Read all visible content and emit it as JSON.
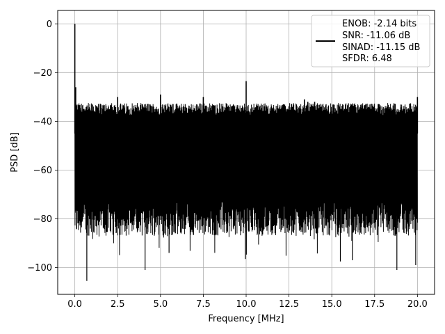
{
  "chart_data": {
    "type": "line",
    "xlabel": "Frequency [MHz]",
    "ylabel": "PSD [dB]",
    "xlim": [
      -1,
      21
    ],
    "ylim": [
      -111,
      5.5
    ],
    "xticks": [
      0,
      2.5,
      5,
      7.5,
      10,
      12.5,
      15,
      17.5,
      20
    ],
    "xtick_labels": [
      "0.0",
      "2.5",
      "5.0",
      "7.5",
      "10.0",
      "12.5",
      "15.0",
      "17.5",
      "20.0"
    ],
    "yticks": [
      0,
      -20,
      -40,
      -60,
      -80,
      -100
    ],
    "ytick_labels": [
      "0",
      "−20",
      "−40",
      "−60",
      "−80",
      "−100"
    ],
    "grid": true,
    "legend_position": "top-right",
    "legend_lines": [
      "ENOB: -2.14 bits",
      "SNR: -11.06 dB",
      "SINAD: -11.15 dB",
      "SFDR: 6.48"
    ],
    "series": [
      {
        "color": "#000000",
        "x_range": [
          0,
          20
        ],
        "noise_floor_upper_db": -36,
        "noise_floor_lower_db": -80,
        "peaks": [
          {
            "x": 0.0,
            "y": 0.0
          },
          {
            "x": 0.05,
            "y": -26
          },
          {
            "x": 2.5,
            "y": -30
          },
          {
            "x": 5.0,
            "y": -29
          },
          {
            "x": 7.5,
            "y": -30
          },
          {
            "x": 10.0,
            "y": -23.5
          },
          {
            "x": 13.4,
            "y": -31
          },
          {
            "x": 13.6,
            "y": -32
          },
          {
            "x": 14.0,
            "y": -32
          },
          {
            "x": 20.0,
            "y": -30
          }
        ],
        "dips": [
          {
            "x": 0.7,
            "y": -105.5
          },
          {
            "x": 4.1,
            "y": -101
          },
          {
            "x": 9.95,
            "y": -96.5
          },
          {
            "x": 18.8,
            "y": -101
          },
          {
            "x": 19.9,
            "y": -99
          },
          {
            "x": 5.5,
            "y": -94
          },
          {
            "x": 15.5,
            "y": -97.5
          },
          {
            "x": 16.2,
            "y": -97
          }
        ]
      }
    ]
  }
}
